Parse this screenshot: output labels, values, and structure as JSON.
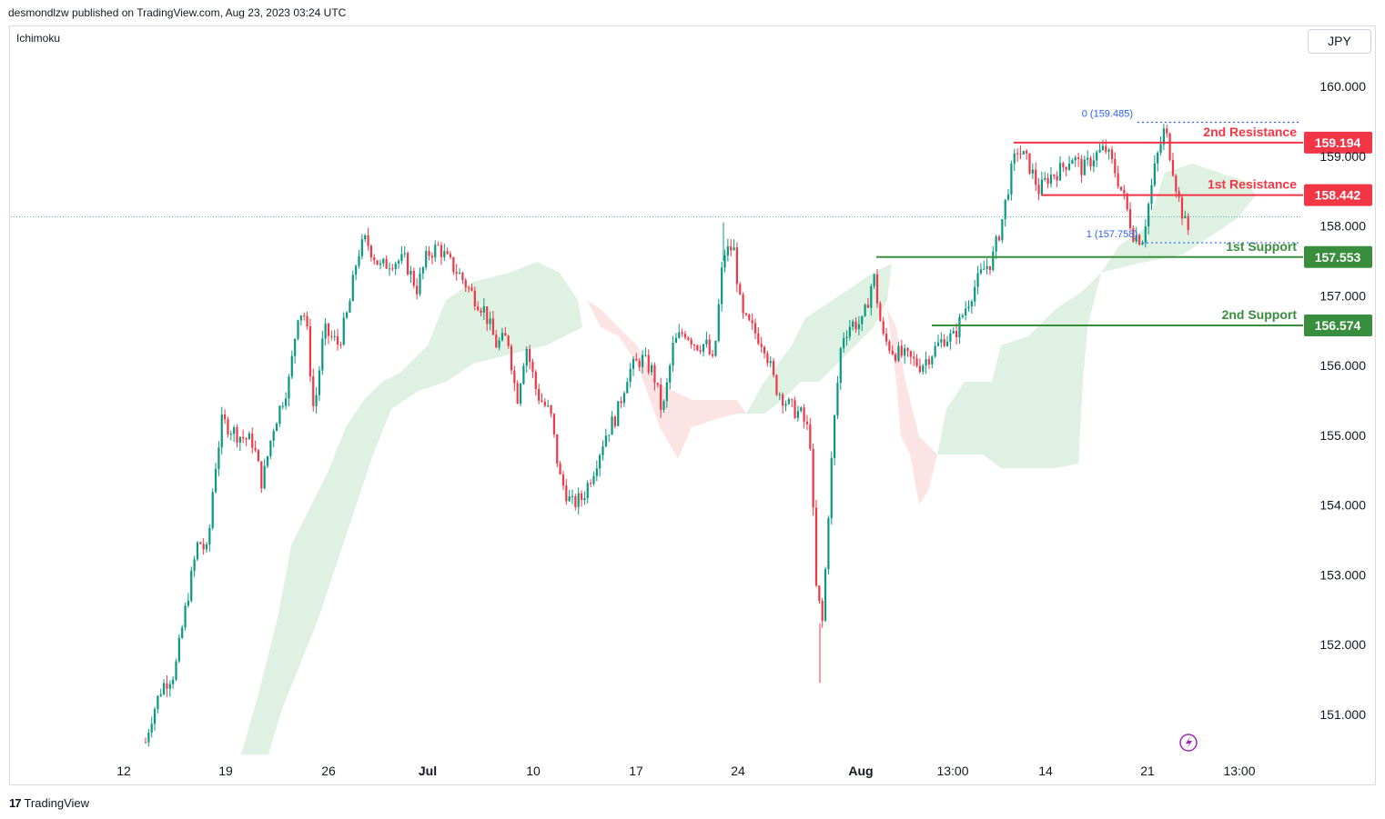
{
  "header": {
    "publisher": "desmondlzw published on TradingView.com, Aug 23, 2023 03:24 UTC",
    "indicator": "Ichimoku",
    "currency": "JPY"
  },
  "footer": {
    "logo_mark": "17",
    "brand": "TradingView"
  },
  "chart_data": {
    "type": "candlestick",
    "title": "",
    "ylim": [
      150.3,
      160.7
    ],
    "y_ticks": [
      "160.000",
      "159.000",
      "158.000",
      "157.000",
      "156.000",
      "155.000",
      "154.000",
      "153.000",
      "152.000",
      "151.000"
    ],
    "x_ticks": [
      "12",
      "19",
      "26",
      "Jul",
      "10",
      "17",
      "24",
      "Aug",
      "13:00",
      "14",
      "21",
      "13:00"
    ],
    "current_price": 158.13,
    "levels": [
      {
        "label": "2nd Resistance",
        "value": 159.194,
        "value_label": "159.194",
        "kind": "resistance",
        "color": "#f23645"
      },
      {
        "label": "1st Resistance",
        "value": 158.442,
        "value_label": "158.442",
        "kind": "resistance",
        "color": "#f23645"
      },
      {
        "label": "1st Support",
        "value": 157.553,
        "value_label": "157.553",
        "kind": "support",
        "color": "#388e3c"
      },
      {
        "label": "2nd Support",
        "value": 156.574,
        "value_label": "156.574",
        "kind": "support",
        "color": "#388e3c"
      }
    ],
    "fib": [
      {
        "label": "0 (159.485)",
        "value": 159.485
      },
      {
        "label": "1 (157.758)",
        "value": 157.758
      }
    ],
    "up_color": "#089981",
    "down_color": "#f23645",
    "cloud_bull_color": "#dff1e2",
    "cloud_bear_color": "#fde4e4",
    "price_path": [
      [
        118,
        150.3
      ],
      [
        155,
        150.3
      ],
      [
        165,
        150.9
      ],
      [
        178,
        151.4
      ],
      [
        192,
        151.6
      ],
      [
        205,
        152.6
      ],
      [
        218,
        153.5
      ],
      [
        228,
        153.3
      ],
      [
        235,
        154.4
      ],
      [
        244,
        155.2
      ],
      [
        262,
        155.0
      ],
      [
        278,
        154.9
      ],
      [
        288,
        154.3
      ],
      [
        300,
        155.1
      ],
      [
        318,
        155.8
      ],
      [
        328,
        156.8
      ],
      [
        336,
        156.7
      ],
      [
        345,
        155.3
      ],
      [
        356,
        156.5
      ],
      [
        372,
        156.3
      ],
      [
        383,
        156.8
      ],
      [
        393,
        157.6
      ],
      [
        402,
        157.8
      ],
      [
        418,
        157.4
      ],
      [
        430,
        157.5
      ],
      [
        445,
        157.5
      ],
      [
        458,
        157.1
      ],
      [
        470,
        157.6
      ],
      [
        482,
        157.7
      ],
      [
        492,
        157.5
      ],
      [
        505,
        157.3
      ],
      [
        520,
        157.0
      ],
      [
        532,
        156.8
      ],
      [
        545,
        156.3
      ],
      [
        558,
        156.4
      ],
      [
        568,
        155.5
      ],
      [
        578,
        156.3
      ],
      [
        590,
        155.6
      ],
      [
        605,
        155.3
      ],
      [
        615,
        154.4
      ],
      [
        628,
        154.0
      ],
      [
        640,
        154.1
      ],
      [
        652,
        154.5
      ],
      [
        665,
        155.0
      ],
      [
        678,
        155.3
      ],
      [
        690,
        155.9
      ],
      [
        705,
        156.1
      ],
      [
        718,
        155.9
      ],
      [
        728,
        155.3
      ],
      [
        740,
        156.3
      ],
      [
        752,
        156.5
      ],
      [
        765,
        156.3
      ],
      [
        776,
        156.3
      ],
      [
        784,
        156.0
      ],
      [
        795,
        157.6
      ],
      [
        806,
        157.7
      ],
      [
        815,
        156.7
      ],
      [
        828,
        156.5
      ],
      [
        840,
        156.3
      ],
      [
        852,
        155.7
      ],
      [
        868,
        155.4
      ],
      [
        880,
        155.3
      ],
      [
        890,
        155.0
      ],
      [
        897,
        152.8
      ],
      [
        904,
        152.3
      ],
      [
        912,
        154.3
      ],
      [
        918,
        155.4
      ],
      [
        925,
        156.4
      ],
      [
        935,
        156.6
      ],
      [
        948,
        156.6
      ],
      [
        960,
        157.3
      ],
      [
        970,
        156.4
      ],
      [
        982,
        156.2
      ],
      [
        998,
        156.1
      ],
      [
        1012,
        156.0
      ],
      [
        1025,
        156.2
      ],
      [
        1038,
        156.4
      ],
      [
        1048,
        156.4
      ],
      [
        1060,
        156.8
      ],
      [
        1070,
        157.1
      ],
      [
        1082,
        157.4
      ],
      [
        1090,
        157.5
      ],
      [
        1100,
        158.0
      ],
      [
        1110,
        158.7
      ],
      [
        1118,
        159.1
      ],
      [
        1130,
        158.9
      ],
      [
        1142,
        158.5
      ],
      [
        1152,
        158.7
      ],
      [
        1165,
        158.8
      ],
      [
        1178,
        159.0
      ],
      [
        1190,
        158.8
      ],
      [
        1202,
        159.0
      ],
      [
        1215,
        159.1
      ],
      [
        1225,
        158.8
      ],
      [
        1235,
        158.4
      ],
      [
        1245,
        157.9
      ],
      [
        1255,
        157.8
      ],
      [
        1262,
        158.3
      ],
      [
        1270,
        158.9
      ],
      [
        1280,
        159.4
      ],
      [
        1288,
        158.9
      ],
      [
        1295,
        158.4
      ],
      [
        1303,
        158.0
      ],
      [
        1308,
        157.9
      ]
    ]
  }
}
